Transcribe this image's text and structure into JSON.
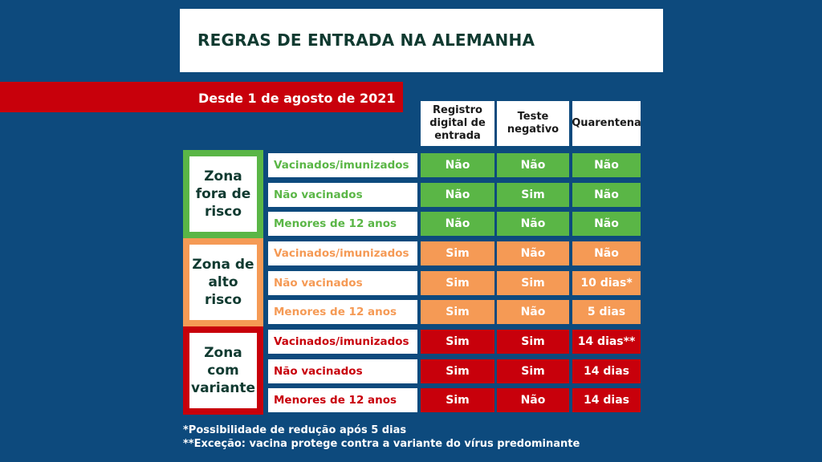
{
  "title": "REGRAS DE ENTRADA NA ALEMANHA",
  "subtitle": "Desde 1 de agosto de 2021",
  "columns": [
    "Registro\ndigital de\nentrada",
    "Teste\nnegativo",
    "Quarentena"
  ],
  "colors": {
    "background": "#0d4a7d",
    "green": "#5ab646",
    "orange": "#f59a55",
    "red": "#c8000b"
  },
  "zones": [
    {
      "name": "Zona\nfora de\nrisco",
      "color": "green",
      "rows": [
        {
          "category": "Vacinados/imunizados",
          "values": [
            "Não",
            "Não",
            "Não"
          ]
        },
        {
          "category": "Não vacinados",
          "values": [
            "Não",
            "Sim",
            "Não"
          ]
        },
        {
          "category": "Menores de 12 anos",
          "values": [
            "Não",
            "Não",
            "Não"
          ]
        }
      ]
    },
    {
      "name": "Zona de\nalto risco",
      "color": "orange",
      "rows": [
        {
          "category": "Vacinados/imunizados",
          "values": [
            "Sim",
            "Não",
            "Não"
          ]
        },
        {
          "category": "Não vacinados",
          "values": [
            "Sim",
            "Sim",
            "10 dias*"
          ]
        },
        {
          "category": "Menores de 12 anos",
          "values": [
            "Sim",
            "Não",
            "5 dias"
          ]
        }
      ]
    },
    {
      "name": "Zona\ncom\nvariante",
      "color": "red",
      "rows": [
        {
          "category": "Vacinados/imunizados",
          "values": [
            "Sim",
            "Sim",
            "14 dias**"
          ]
        },
        {
          "category": "Não vacinados",
          "values": [
            "Sim",
            "Sim",
            "14 dias"
          ]
        },
        {
          "category": "Menores de 12 anos",
          "values": [
            "Sim",
            "Não",
            "14 dias"
          ]
        }
      ]
    }
  ],
  "footnotes": [
    "*Possibilidade de redução após 5 dias",
    "**Exceção: vacina protege contra a variante do vírus predominante"
  ]
}
